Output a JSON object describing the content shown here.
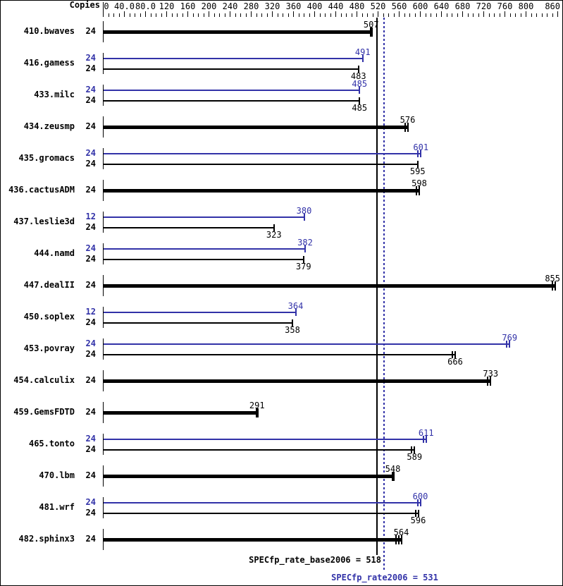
{
  "colors": {
    "peak": "#3232a8",
    "base": "#000000",
    "background": "#ffffff",
    "border": "#000000"
  },
  "header": {
    "copies_label": "Copies"
  },
  "chart_data": {
    "type": "bar",
    "orientation": "horizontal",
    "x_axis": {
      "range": [
        0,
        860
      ],
      "minor_tick_step": 10,
      "labels": [
        {
          "value": 0,
          "label": "0"
        },
        {
          "value": 40,
          "label": "40.0"
        },
        {
          "value": 80,
          "label": "80.0"
        },
        {
          "value": 120,
          "label": "120"
        },
        {
          "value": 160,
          "label": "160"
        },
        {
          "value": 200,
          "label": "200"
        },
        {
          "value": 240,
          "label": "240"
        },
        {
          "value": 280,
          "label": "280"
        },
        {
          "value": 320,
          "label": "320"
        },
        {
          "value": 360,
          "label": "360"
        },
        {
          "value": 400,
          "label": "400"
        },
        {
          "value": 440,
          "label": "440"
        },
        {
          "value": 480,
          "label": "480"
        },
        {
          "value": 520,
          "label": "520"
        },
        {
          "value": 560,
          "label": "560"
        },
        {
          "value": 600,
          "label": "600"
        },
        {
          "value": 640,
          "label": "640"
        },
        {
          "value": 680,
          "label": "680"
        },
        {
          "value": 720,
          "label": "720"
        },
        {
          "value": 760,
          "label": "760"
        },
        {
          "value": 800,
          "label": "800"
        },
        {
          "value": 860,
          "label": "860"
        }
      ]
    },
    "benchmarks": [
      {
        "name": "410.bwaves",
        "bars": [
          {
            "series": "base-only",
            "copies": 24,
            "value": 507,
            "end_ticks": 1
          }
        ]
      },
      {
        "name": "416.gamess",
        "bars": [
          {
            "series": "peak",
            "copies": 24,
            "value": 491,
            "end_ticks": 1
          },
          {
            "series": "base",
            "copies": 24,
            "value": 483,
            "end_ticks": 1
          }
        ]
      },
      {
        "name": "433.milc",
        "bars": [
          {
            "series": "peak",
            "copies": 24,
            "value": 485,
            "end_ticks": 1
          },
          {
            "series": "base",
            "copies": 24,
            "value": 485,
            "end_ticks": 1
          }
        ]
      },
      {
        "name": "434.zeusmp",
        "bars": [
          {
            "series": "base-only",
            "copies": 24,
            "value": 576,
            "end_ticks": 2
          }
        ]
      },
      {
        "name": "435.gromacs",
        "bars": [
          {
            "series": "peak",
            "copies": 24,
            "value": 601,
            "end_ticks": 2
          },
          {
            "series": "base",
            "copies": 24,
            "value": 595,
            "end_ticks": 1
          }
        ]
      },
      {
        "name": "436.cactusADM",
        "bars": [
          {
            "series": "base-only",
            "copies": 24,
            "value": 598,
            "end_ticks": 2
          }
        ]
      },
      {
        "name": "437.leslie3d",
        "bars": [
          {
            "series": "peak",
            "copies": 12,
            "value": 380,
            "end_ticks": 1
          },
          {
            "series": "base",
            "copies": 24,
            "value": 323,
            "end_ticks": 1
          }
        ]
      },
      {
        "name": "444.namd",
        "bars": [
          {
            "series": "peak",
            "copies": 24,
            "value": 382,
            "end_ticks": 1
          },
          {
            "series": "base",
            "copies": 24,
            "value": 379,
            "end_ticks": 1
          }
        ]
      },
      {
        "name": "447.dealII",
        "bars": [
          {
            "series": "base-only",
            "copies": 24,
            "value": 855,
            "end_ticks": 2
          }
        ]
      },
      {
        "name": "450.soplex",
        "bars": [
          {
            "series": "peak",
            "copies": 12,
            "value": 364,
            "end_ticks": 1
          },
          {
            "series": "base",
            "copies": 24,
            "value": 358,
            "end_ticks": 1
          }
        ]
      },
      {
        "name": "453.povray",
        "bars": [
          {
            "series": "peak",
            "copies": 24,
            "value": 769,
            "end_ticks": 2
          },
          {
            "series": "base",
            "copies": 24,
            "value": 666,
            "end_ticks": 2
          }
        ]
      },
      {
        "name": "454.calculix",
        "bars": [
          {
            "series": "base-only",
            "copies": 24,
            "value": 733,
            "end_ticks": 2
          }
        ]
      },
      {
        "name": "459.GemsFDTD",
        "bars": [
          {
            "series": "base-only",
            "copies": 24,
            "value": 291,
            "end_ticks": 1
          }
        ]
      },
      {
        "name": "465.tonto",
        "bars": [
          {
            "series": "peak",
            "copies": 24,
            "value": 611,
            "end_ticks": 2
          },
          {
            "series": "base",
            "copies": 24,
            "value": 589,
            "end_ticks": 2
          }
        ]
      },
      {
        "name": "470.lbm",
        "bars": [
          {
            "series": "base-only",
            "copies": 24,
            "value": 548,
            "end_ticks": 1
          }
        ]
      },
      {
        "name": "481.wrf",
        "bars": [
          {
            "series": "peak",
            "copies": 24,
            "value": 600,
            "end_ticks": 2
          },
          {
            "series": "base",
            "copies": 24,
            "value": 596,
            "end_ticks": 2
          }
        ]
      },
      {
        "name": "482.sphinx3",
        "bars": [
          {
            "series": "base-only",
            "copies": 24,
            "value": 564,
            "end_ticks": 3
          }
        ]
      }
    ],
    "reference_lines": [
      {
        "name": "base",
        "style": "solid",
        "color": "#000000",
        "value": 518
      },
      {
        "name": "peak",
        "style": "dotted",
        "color": "#3232a8",
        "value": 531
      }
    ]
  },
  "footer": {
    "base_summary": "SPECfp_rate_base2006 = 518",
    "peak_summary": "SPECfp_rate2006 = 531"
  }
}
